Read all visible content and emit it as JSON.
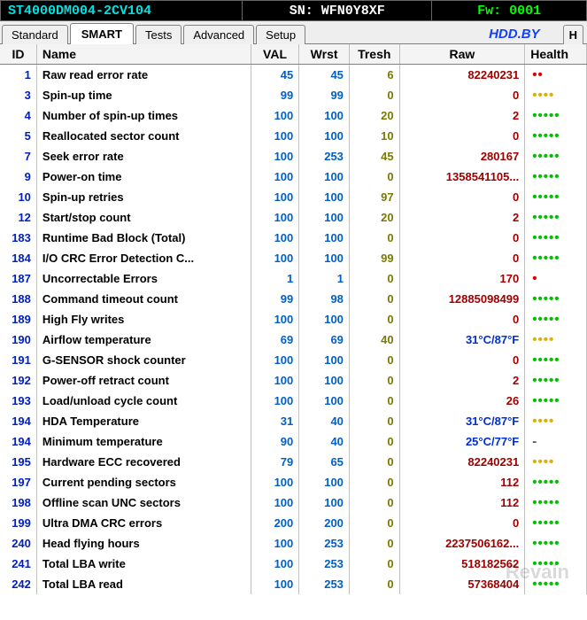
{
  "header": {
    "model": "ST4000DM004-2CV104",
    "serial": "SN: WFN0Y8XF",
    "fw": "Fw: 0001"
  },
  "tabs": [
    "Standard",
    "SMART",
    "Tests",
    "Advanced",
    "Setup"
  ],
  "activeTab": 1,
  "brand": "HDD.BY",
  "hButton": "H",
  "watermark": "Revain",
  "columns": [
    "ID",
    "Name",
    "VAL",
    "Wrst",
    "Tresh",
    "Raw",
    "Health"
  ],
  "rows": [
    {
      "id": "1",
      "name": "Raw read error rate",
      "nameColor": "nc-green",
      "val": "45",
      "wrst": "45",
      "tresh": "6",
      "raw": "82240231",
      "rawColor": "",
      "health": "••",
      "healthClass": "dots-red"
    },
    {
      "id": "3",
      "name": "Spin-up time",
      "nameColor": "nc-green",
      "val": "99",
      "wrst": "99",
      "tresh": "0",
      "raw": "0",
      "rawColor": "",
      "health": "••••",
      "healthClass": "dots-yellow"
    },
    {
      "id": "4",
      "name": "Number of spin-up times",
      "nameColor": "nc-black",
      "val": "100",
      "wrst": "100",
      "tresh": "20",
      "raw": "2",
      "rawColor": "",
      "health": "•••••",
      "healthClass": "dots-green"
    },
    {
      "id": "5",
      "name": "Reallocated sector count",
      "nameColor": "nc-purple",
      "val": "100",
      "wrst": "100",
      "tresh": "10",
      "raw": "0",
      "rawColor": "",
      "health": "•••••",
      "healthClass": "dots-green"
    },
    {
      "id": "7",
      "name": "Seek error rate",
      "nameColor": "nc-green",
      "val": "100",
      "wrst": "253",
      "tresh": "45",
      "raw": "280167",
      "rawColor": "",
      "health": "•••••",
      "healthClass": "dots-green"
    },
    {
      "id": "9",
      "name": "Power-on time",
      "nameColor": "nc-black",
      "val": "100",
      "wrst": "100",
      "tresh": "0",
      "raw": "1358541105...",
      "rawColor": "",
      "health": "•••••",
      "healthClass": "dots-green"
    },
    {
      "id": "10",
      "name": "Spin-up retries",
      "nameColor": "nc-green",
      "val": "100",
      "wrst": "100",
      "tresh": "97",
      "raw": "0",
      "rawColor": "",
      "health": "•••••",
      "healthClass": "dots-green"
    },
    {
      "id": "12",
      "name": "Start/stop count",
      "nameColor": "nc-black",
      "val": "100",
      "wrst": "100",
      "tresh": "20",
      "raw": "2",
      "rawColor": "",
      "health": "•••••",
      "healthClass": "dots-green"
    },
    {
      "id": "183",
      "name": "Runtime Bad Block (Total)",
      "nameColor": "nc-black",
      "val": "100",
      "wrst": "100",
      "tresh": "0",
      "raw": "0",
      "rawColor": "",
      "health": "•••••",
      "healthClass": "dots-green"
    },
    {
      "id": "184",
      "name": "I/O CRC Error Detection C...",
      "nameColor": "nc-purple",
      "val": "100",
      "wrst": "100",
      "tresh": "99",
      "raw": "0",
      "rawColor": "",
      "health": "•••••",
      "healthClass": "dots-green"
    },
    {
      "id": "187",
      "name": "Uncorrectable Errors",
      "nameColor": "nc-purple",
      "val": "1",
      "wrst": "1",
      "tresh": "0",
      "raw": "170",
      "rawColor": "",
      "health": "•",
      "healthClass": "dots-red"
    },
    {
      "id": "188",
      "name": "Command timeout count",
      "nameColor": "nc-black",
      "val": "99",
      "wrst": "98",
      "tresh": "0",
      "raw": "12885098499",
      "rawColor": "",
      "health": "•••••",
      "healthClass": "dots-green"
    },
    {
      "id": "189",
      "name": "High Fly writes",
      "nameColor": "nc-black",
      "val": "100",
      "wrst": "100",
      "tresh": "0",
      "raw": "0",
      "rawColor": "",
      "health": "•••••",
      "healthClass": "dots-green"
    },
    {
      "id": "190",
      "name": "Airflow temperature",
      "nameColor": "nc-blue",
      "val": "69",
      "wrst": "69",
      "tresh": "40",
      "raw": "31°C/87°F",
      "rawColor": "blue",
      "health": "••••",
      "healthClass": "dots-yellow"
    },
    {
      "id": "191",
      "name": "G-SENSOR shock counter",
      "nameColor": "nc-black",
      "val": "100",
      "wrst": "100",
      "tresh": "0",
      "raw": "0",
      "rawColor": "",
      "health": "•••••",
      "healthClass": "dots-green"
    },
    {
      "id": "192",
      "name": "Power-off retract count",
      "nameColor": "nc-black",
      "val": "100",
      "wrst": "100",
      "tresh": "0",
      "raw": "2",
      "rawColor": "",
      "health": "•••••",
      "healthClass": "dots-green"
    },
    {
      "id": "193",
      "name": "Load/unload cycle count",
      "nameColor": "nc-black",
      "val": "100",
      "wrst": "100",
      "tresh": "0",
      "raw": "26",
      "rawColor": "",
      "health": "•••••",
      "healthClass": "dots-green"
    },
    {
      "id": "194",
      "name": "HDA Temperature",
      "nameColor": "nc-blue",
      "val": "31",
      "wrst": "40",
      "tresh": "0",
      "raw": "31°C/87°F",
      "rawColor": "blue",
      "health": "••••",
      "healthClass": "dots-yellow"
    },
    {
      "id": "194",
      "name": "Minimum temperature",
      "nameColor": "nc-blue",
      "val": "90",
      "wrst": "40",
      "tresh": "0",
      "raw": "25°C/77°F",
      "rawColor": "blue",
      "health": "-",
      "healthClass": "dash"
    },
    {
      "id": "195",
      "name": "Hardware ECC recovered",
      "nameColor": "nc-black",
      "val": "79",
      "wrst": "65",
      "tresh": "0",
      "raw": "82240231",
      "rawColor": "",
      "health": "••••",
      "healthClass": "dots-yellow"
    },
    {
      "id": "197",
      "name": "Current pending sectors",
      "nameColor": "nc-purple",
      "val": "100",
      "wrst": "100",
      "tresh": "0",
      "raw": "112",
      "rawColor": "",
      "health": "•••••",
      "healthClass": "dots-green"
    },
    {
      "id": "198",
      "name": "Offline scan UNC sectors",
      "nameColor": "nc-purple",
      "val": "100",
      "wrst": "100",
      "tresh": "0",
      "raw": "112",
      "rawColor": "",
      "health": "•••••",
      "healthClass": "dots-green"
    },
    {
      "id": "199",
      "name": "Ultra DMA CRC errors",
      "nameColor": "nc-black",
      "val": "200",
      "wrst": "200",
      "tresh": "0",
      "raw": "0",
      "rawColor": "",
      "health": "•••••",
      "healthClass": "dots-green"
    },
    {
      "id": "240",
      "name": "Head flying hours",
      "nameColor": "nc-black",
      "val": "100",
      "wrst": "253",
      "tresh": "0",
      "raw": "2237506162...",
      "rawColor": "",
      "health": "•••••",
      "healthClass": "dots-green"
    },
    {
      "id": "241",
      "name": "Total LBA write",
      "nameColor": "nc-black",
      "val": "100",
      "wrst": "253",
      "tresh": "0",
      "raw": "518182562",
      "rawColor": "",
      "health": "•••••",
      "healthClass": "dots-green"
    },
    {
      "id": "242",
      "name": "Total LBA read",
      "nameColor": "nc-black",
      "val": "100",
      "wrst": "253",
      "tresh": "0",
      "raw": "57368404",
      "rawColor": "",
      "health": "•••••",
      "healthClass": "dots-green"
    }
  ]
}
